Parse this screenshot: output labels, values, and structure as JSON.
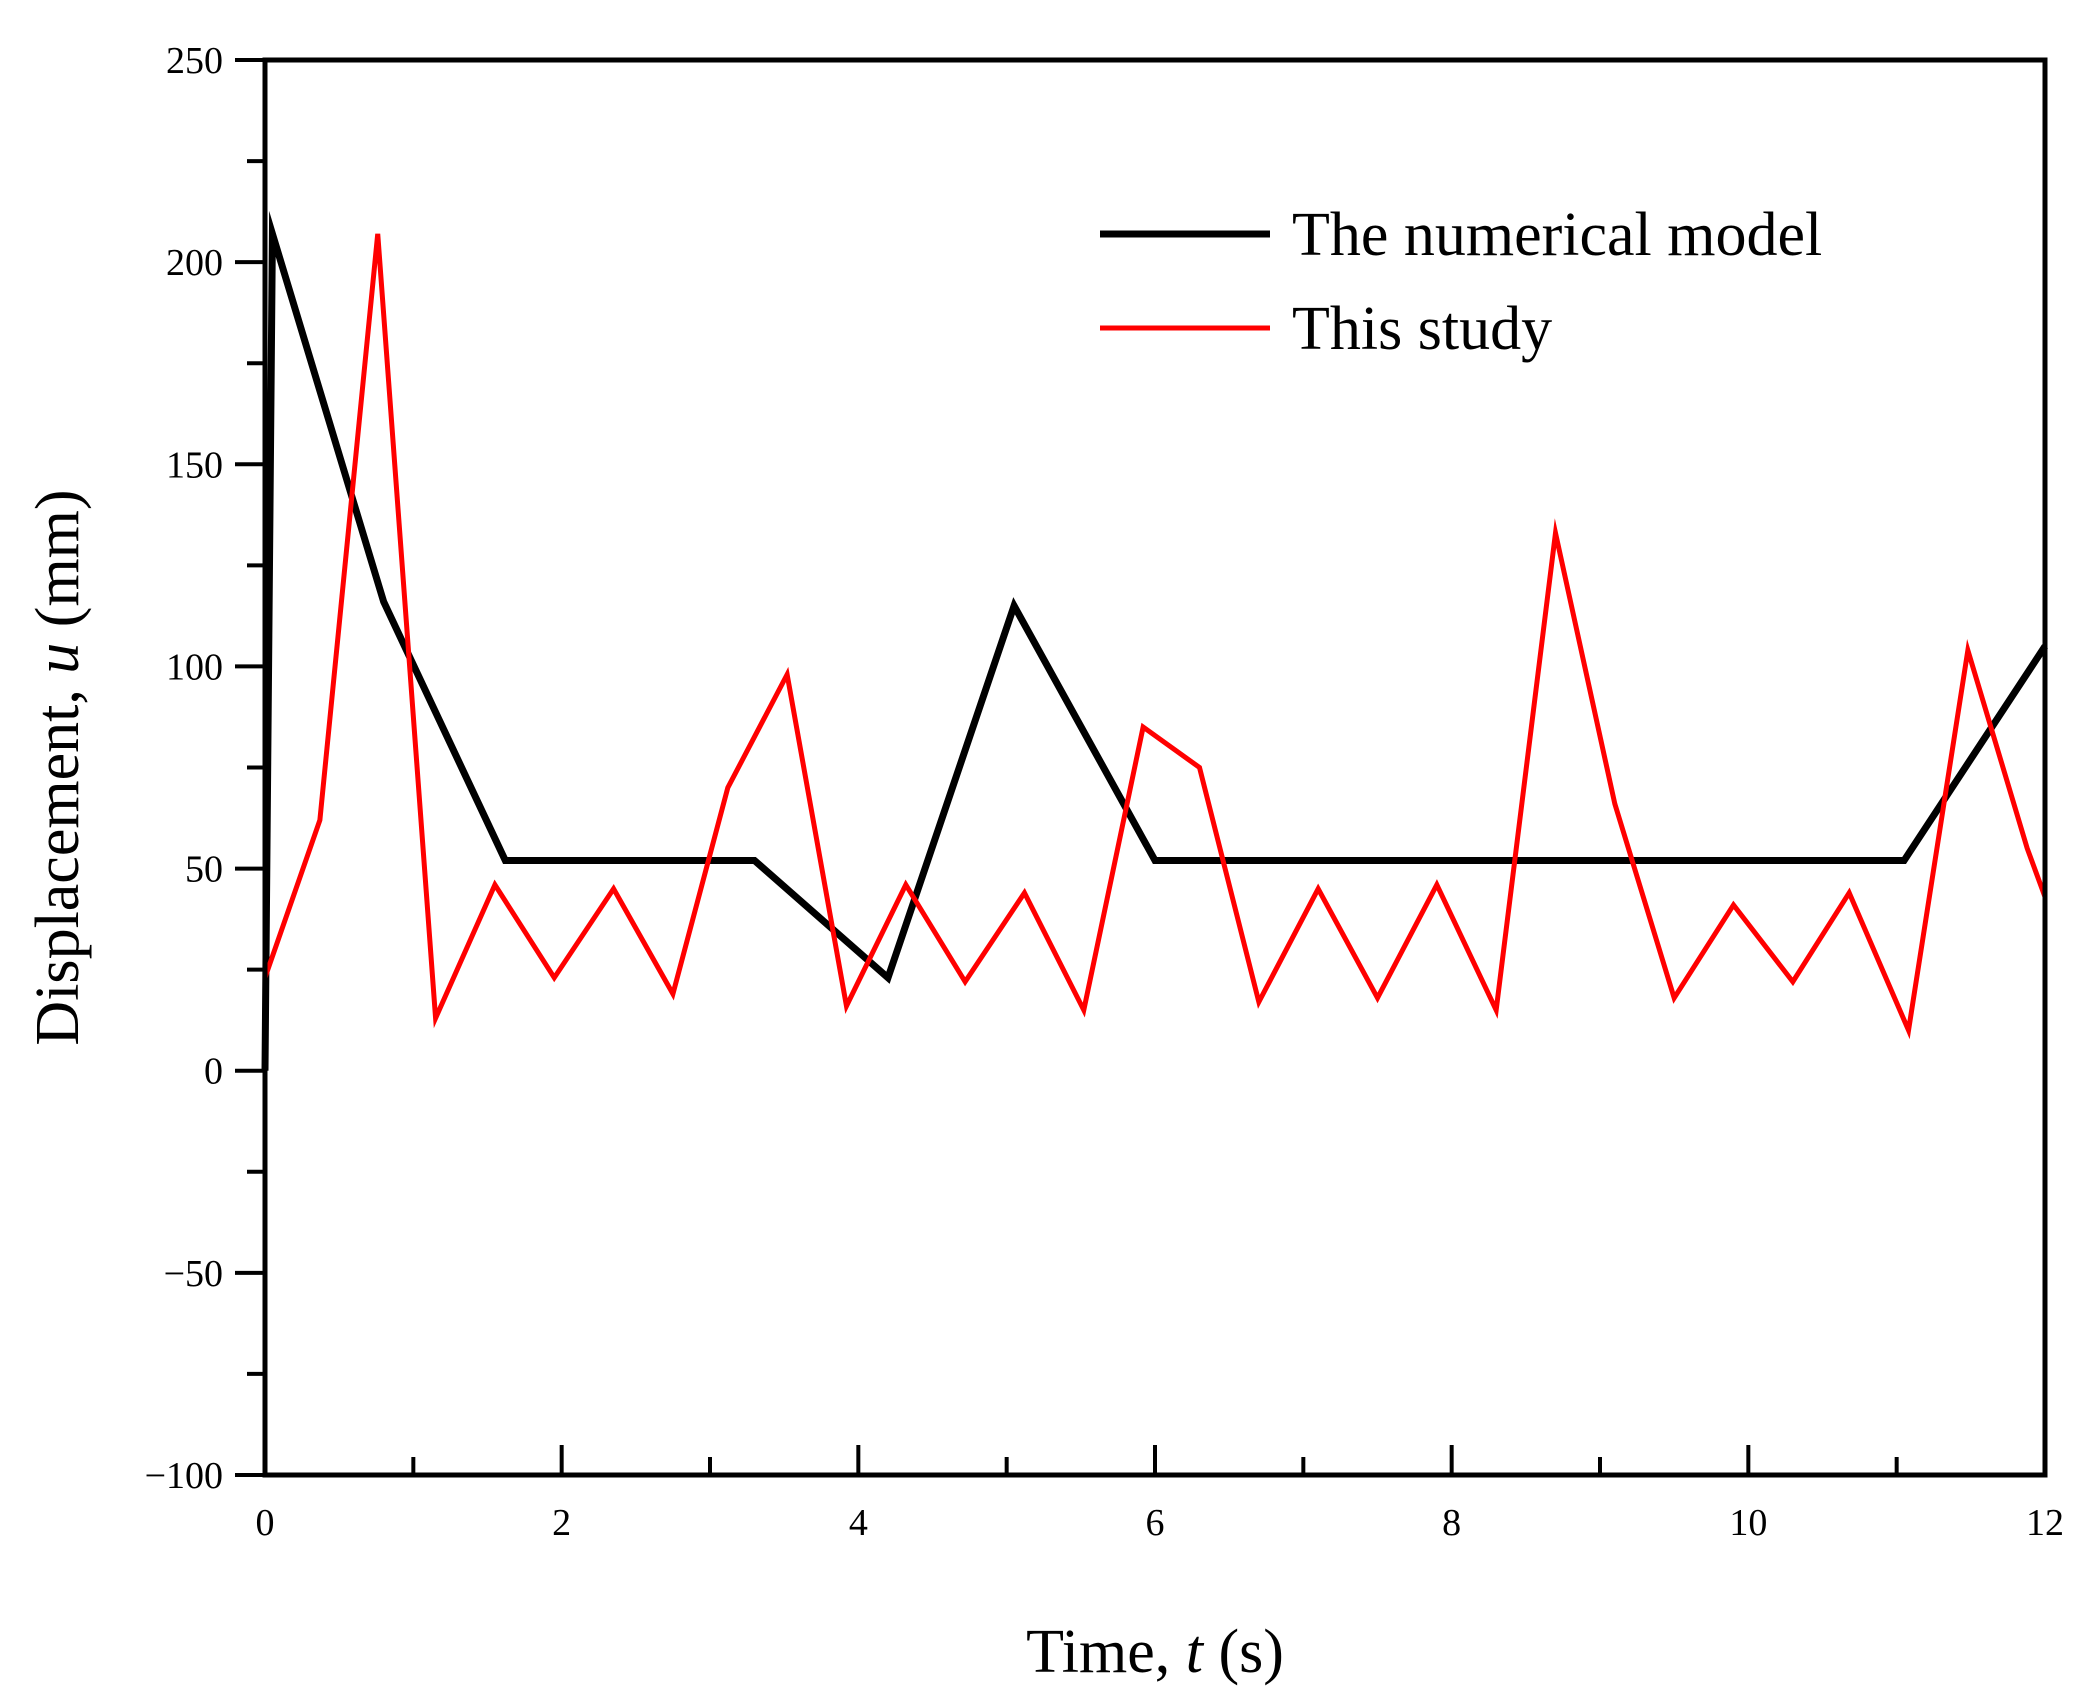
{
  "chart_data": {
    "type": "line",
    "title": "",
    "xlabel": {
      "prefix": "Time, ",
      "var": "t",
      "suffix": " (s)"
    },
    "ylabel": {
      "prefix": "Displacement, ",
      "var": "u",
      "suffix": " (mm)"
    },
    "xlim": [
      0,
      12
    ],
    "ylim": [
      -100,
      250
    ],
    "x_ticks": [
      0,
      2,
      4,
      6,
      8,
      10,
      12
    ],
    "x_tick_labels": [
      "0",
      "2",
      "4",
      "6",
      "8",
      "10",
      "12"
    ],
    "y_ticks": [
      -100,
      -50,
      0,
      50,
      100,
      150,
      200,
      250
    ],
    "y_tick_labels": [
      "−100",
      "−50",
      "0",
      "50",
      "100",
      "150",
      "200",
      "250"
    ],
    "x_minor_step": 1,
    "y_minor_step": 25,
    "grid": false,
    "legend_position": "top-right",
    "series": [
      {
        "name": "The numerical model",
        "color": "#000000",
        "x": [
          0,
          0.05,
          0.8,
          1.62,
          3.3,
          4.2,
          5.05,
          6.0,
          11.05,
          12.0
        ],
        "y": [
          0,
          207,
          116,
          52,
          52,
          23,
          115,
          52,
          52,
          105
        ]
      },
      {
        "name": "This study",
        "color": "#ff0000",
        "x": [
          0,
          0.37,
          0.76,
          1.15,
          1.55,
          1.95,
          2.35,
          2.75,
          3.12,
          3.52,
          3.92,
          4.32,
          4.72,
          5.12,
          5.52,
          5.92,
          6.3,
          6.7,
          7.1,
          7.5,
          7.9,
          8.3,
          8.7,
          9.1,
          9.5,
          9.9,
          10.3,
          10.68,
          11.08,
          11.48,
          11.88,
          12.0
        ],
        "y": [
          23,
          62,
          207,
          13,
          46,
          23,
          45,
          19,
          70,
          98,
          16,
          46,
          22,
          44,
          15,
          85,
          75,
          17,
          45,
          18,
          46,
          15,
          133,
          66,
          18,
          41,
          22,
          44,
          10,
          104,
          55,
          43
        ]
      }
    ]
  }
}
